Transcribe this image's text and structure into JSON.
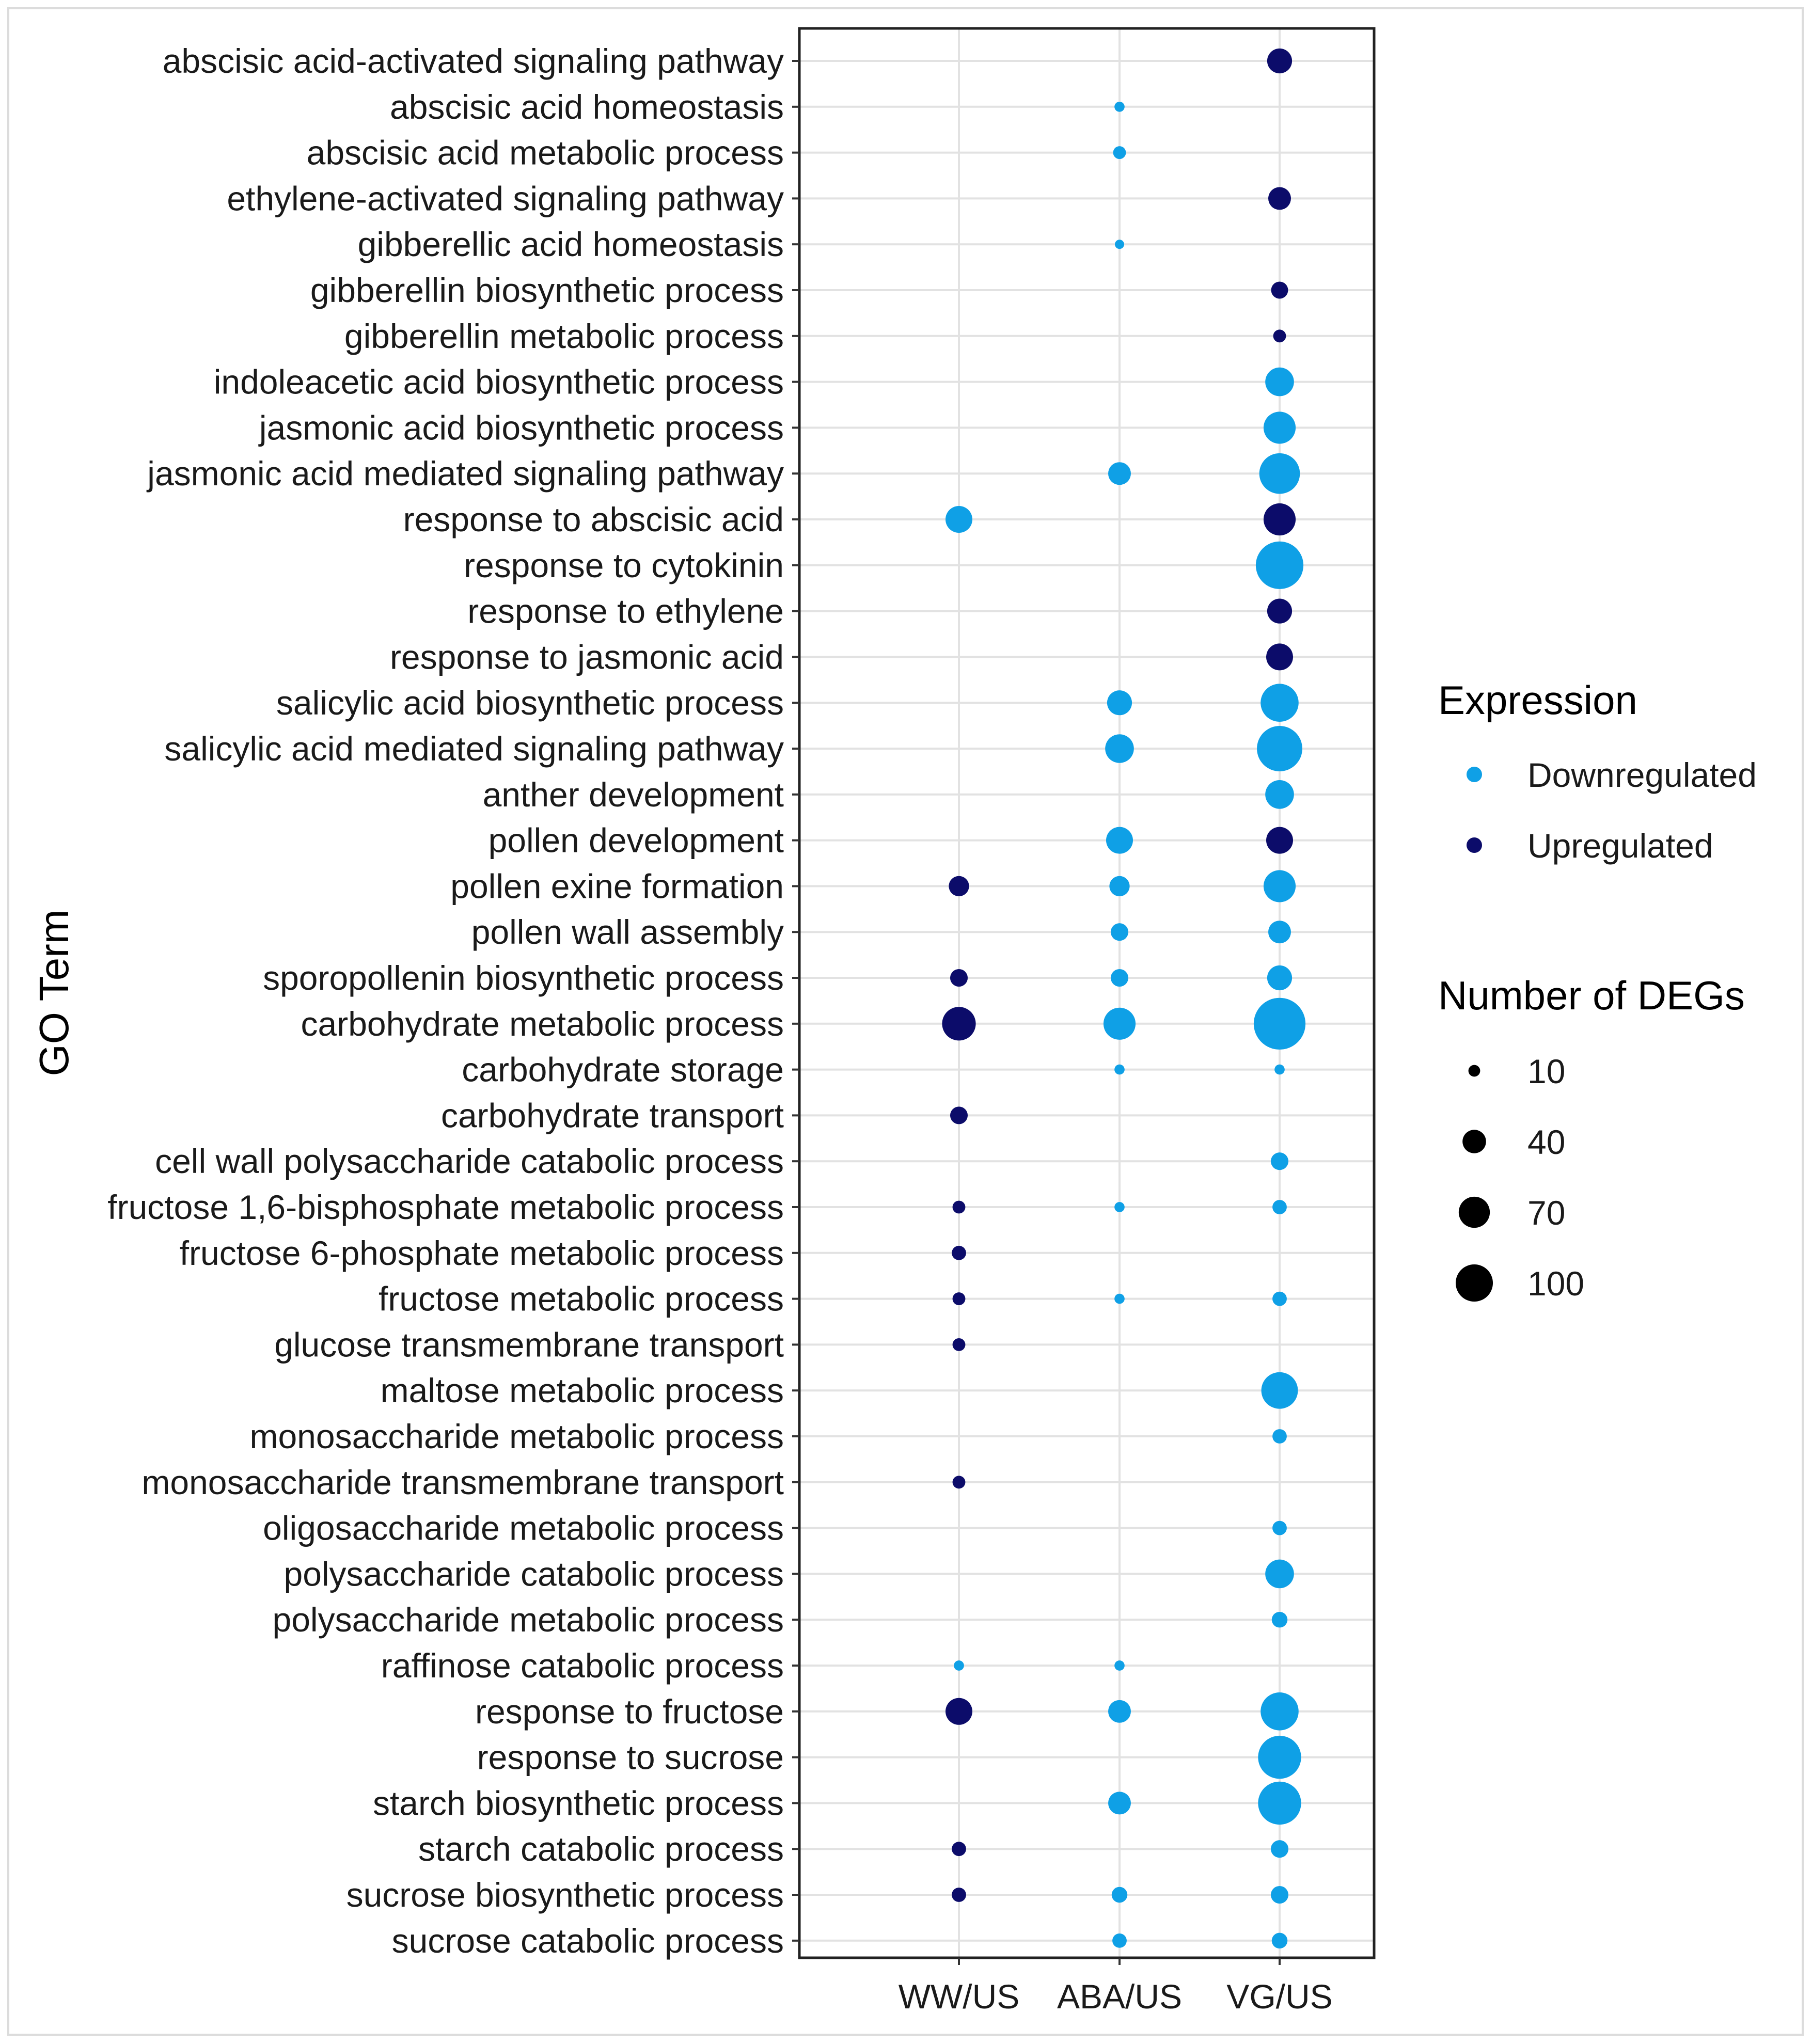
{
  "chart_data": {
    "type": "scatter",
    "title": "",
    "xlabel": "",
    "ylabel": "GO Term",
    "x_categories": [
      "WW/US",
      "ABA/US",
      "VG/US"
    ],
    "y_categories": [
      "abscisic acid-activated signaling pathway",
      "abscisic acid homeostasis",
      "abscisic acid metabolic process",
      "ethylene-activated signaling pathway",
      "gibberellic acid homeostasis",
      "gibberellin biosynthetic process",
      "gibberellin metabolic process",
      "indoleacetic acid biosynthetic process",
      "jasmonic acid biosynthetic process",
      "jasmonic acid mediated signaling pathway",
      "response to abscisic acid",
      "response to cytokinin",
      "response to ethylene",
      "response to jasmonic acid",
      "salicylic acid biosynthetic process",
      "salicylic acid mediated signaling pathway",
      "anther development",
      "pollen development",
      "pollen exine formation",
      "pollen wall assembly",
      "sporopollenin biosynthetic process",
      "carbohydrate metabolic process",
      "carbohydrate storage",
      "carbohydrate transport",
      "cell wall polysaccharide catabolic process",
      "fructose 1,6-bisphosphate metabolic process",
      "fructose 6-phosphate metabolic process",
      "fructose metabolic process",
      "glucose transmembrane transport",
      "maltose metabolic process",
      "monosaccharide metabolic process",
      "monosaccharide transmembrane transport",
      "oligosaccharide metabolic process",
      "polysaccharide catabolic process",
      "polysaccharide metabolic process",
      "raffinose catabolic process",
      "response to fructose",
      "response to sucrose",
      "starch biosynthetic process",
      "starch catabolic process",
      "sucrose biosynthetic process",
      "sucrose catabolic process"
    ],
    "points": [
      {
        "term": "abscisic acid-activated signaling pathway",
        "comparison": "VG/US",
        "degs": 30,
        "expression": "Upregulated"
      },
      {
        "term": "abscisic acid homeostasis",
        "comparison": "ABA/US",
        "degs": 5,
        "expression": "Downregulated"
      },
      {
        "term": "abscisic acid metabolic process",
        "comparison": "ABA/US",
        "degs": 8,
        "expression": "Downregulated"
      },
      {
        "term": "ethylene-activated signaling pathway",
        "comparison": "VG/US",
        "degs": 25,
        "expression": "Upregulated"
      },
      {
        "term": "gibberellic acid homeostasis",
        "comparison": "ABA/US",
        "degs": 4,
        "expression": "Downregulated"
      },
      {
        "term": "gibberellin biosynthetic process",
        "comparison": "VG/US",
        "degs": 14,
        "expression": "Upregulated"
      },
      {
        "term": "gibberellin metabolic process",
        "comparison": "VG/US",
        "degs": 8,
        "expression": "Upregulated"
      },
      {
        "term": "indoleacetic acid biosynthetic process",
        "comparison": "VG/US",
        "degs": 40,
        "expression": "Downregulated"
      },
      {
        "term": "jasmonic acid biosynthetic process",
        "comparison": "VG/US",
        "degs": 50,
        "expression": "Downregulated"
      },
      {
        "term": "jasmonic acid mediated signaling pathway",
        "comparison": "ABA/US",
        "degs": 25,
        "expression": "Downregulated"
      },
      {
        "term": "jasmonic acid mediated signaling pathway",
        "comparison": "VG/US",
        "degs": 80,
        "expression": "Downregulated"
      },
      {
        "term": "response to abscisic acid",
        "comparison": "WW/US",
        "degs": 35,
        "expression": "Downregulated"
      },
      {
        "term": "response to abscisic acid",
        "comparison": "VG/US",
        "degs": 50,
        "expression": "Upregulated"
      },
      {
        "term": "response to cytokinin",
        "comparison": "VG/US",
        "degs": 110,
        "expression": "Downregulated"
      },
      {
        "term": "response to ethylene",
        "comparison": "VG/US",
        "degs": 30,
        "expression": "Upregulated"
      },
      {
        "term": "response to jasmonic acid",
        "comparison": "VG/US",
        "degs": 35,
        "expression": "Upregulated"
      },
      {
        "term": "salicylic acid biosynthetic process",
        "comparison": "ABA/US",
        "degs": 30,
        "expression": "Downregulated"
      },
      {
        "term": "salicylic acid biosynthetic process",
        "comparison": "VG/US",
        "degs": 70,
        "expression": "Downregulated"
      },
      {
        "term": "salicylic acid mediated signaling pathway",
        "comparison": "ABA/US",
        "degs": 40,
        "expression": "Downregulated"
      },
      {
        "term": "salicylic acid mediated signaling pathway",
        "comparison": "VG/US",
        "degs": 100,
        "expression": "Downregulated"
      },
      {
        "term": "anther development",
        "comparison": "VG/US",
        "degs": 40,
        "expression": "Downregulated"
      },
      {
        "term": "pollen development",
        "comparison": "ABA/US",
        "degs": 35,
        "expression": "Downregulated"
      },
      {
        "term": "pollen development",
        "comparison": "VG/US",
        "degs": 35,
        "expression": "Upregulated"
      },
      {
        "term": "pollen exine formation",
        "comparison": "WW/US",
        "degs": 20,
        "expression": "Upregulated"
      },
      {
        "term": "pollen exine formation",
        "comparison": "ABA/US",
        "degs": 20,
        "expression": "Downregulated"
      },
      {
        "term": "pollen exine formation",
        "comparison": "VG/US",
        "degs": 50,
        "expression": "Downregulated"
      },
      {
        "term": "pollen wall assembly",
        "comparison": "ABA/US",
        "degs": 15,
        "expression": "Downregulated"
      },
      {
        "term": "pollen wall assembly",
        "comparison": "VG/US",
        "degs": 25,
        "expression": "Downregulated"
      },
      {
        "term": "sporopollenin biosynthetic process",
        "comparison": "WW/US",
        "degs": 15,
        "expression": "Upregulated"
      },
      {
        "term": "sporopollenin biosynthetic process",
        "comparison": "ABA/US",
        "degs": 15,
        "expression": "Downregulated"
      },
      {
        "term": "sporopollenin biosynthetic process",
        "comparison": "VG/US",
        "degs": 30,
        "expression": "Downregulated"
      },
      {
        "term": "carbohydrate metabolic process",
        "comparison": "WW/US",
        "degs": 55,
        "expression": "Upregulated"
      },
      {
        "term": "carbohydrate metabolic process",
        "comparison": "ABA/US",
        "degs": 50,
        "expression": "Downregulated"
      },
      {
        "term": "carbohydrate metabolic process",
        "comparison": "VG/US",
        "degs": 130,
        "expression": "Downregulated"
      },
      {
        "term": "carbohydrate storage",
        "comparison": "ABA/US",
        "degs": 5,
        "expression": "Downregulated"
      },
      {
        "term": "carbohydrate storage",
        "comparison": "VG/US",
        "degs": 5,
        "expression": "Downregulated"
      },
      {
        "term": "carbohydrate transport",
        "comparison": "WW/US",
        "degs": 15,
        "expression": "Upregulated"
      },
      {
        "term": "cell wall polysaccharide catabolic process",
        "comparison": "VG/US",
        "degs": 15,
        "expression": "Downregulated"
      },
      {
        "term": "fructose 1,6-bisphosphate metabolic process",
        "comparison": "WW/US",
        "degs": 8,
        "expression": "Upregulated"
      },
      {
        "term": "fructose 1,6-bisphosphate metabolic process",
        "comparison": "ABA/US",
        "degs": 5,
        "expression": "Downregulated"
      },
      {
        "term": "fructose 1,6-bisphosphate metabolic process",
        "comparison": "VG/US",
        "degs": 10,
        "expression": "Downregulated"
      },
      {
        "term": "fructose 6-phosphate metabolic process",
        "comparison": "WW/US",
        "degs": 10,
        "expression": "Upregulated"
      },
      {
        "term": "fructose metabolic process",
        "comparison": "WW/US",
        "degs": 8,
        "expression": "Upregulated"
      },
      {
        "term": "fructose metabolic process",
        "comparison": "ABA/US",
        "degs": 5,
        "expression": "Downregulated"
      },
      {
        "term": "fructose metabolic process",
        "comparison": "VG/US",
        "degs": 10,
        "expression": "Downregulated"
      },
      {
        "term": "glucose transmembrane transport",
        "comparison": "WW/US",
        "degs": 8,
        "expression": "Upregulated"
      },
      {
        "term": "maltose metabolic process",
        "comparison": "VG/US",
        "degs": 65,
        "expression": "Downregulated"
      },
      {
        "term": "monosaccharide metabolic process",
        "comparison": "VG/US",
        "degs": 10,
        "expression": "Downregulated"
      },
      {
        "term": "monosaccharide transmembrane transport",
        "comparison": "WW/US",
        "degs": 8,
        "expression": "Upregulated"
      },
      {
        "term": "oligosaccharide metabolic process",
        "comparison": "VG/US",
        "degs": 10,
        "expression": "Downregulated"
      },
      {
        "term": "polysaccharide catabolic process",
        "comparison": "VG/US",
        "degs": 40,
        "expression": "Downregulated"
      },
      {
        "term": "polysaccharide metabolic process",
        "comparison": "VG/US",
        "degs": 12,
        "expression": "Downregulated"
      },
      {
        "term": "raffinose catabolic process",
        "comparison": "WW/US",
        "degs": 5,
        "expression": "Downregulated"
      },
      {
        "term": "raffinose catabolic process",
        "comparison": "ABA/US",
        "degs": 5,
        "expression": "Downregulated"
      },
      {
        "term": "response to fructose",
        "comparison": "WW/US",
        "degs": 35,
        "expression": "Upregulated"
      },
      {
        "term": "response to fructose",
        "comparison": "ABA/US",
        "degs": 25,
        "expression": "Downregulated"
      },
      {
        "term": "response to fructose",
        "comparison": "VG/US",
        "degs": 70,
        "expression": "Downregulated"
      },
      {
        "term": "response to sucrose",
        "comparison": "VG/US",
        "degs": 90,
        "expression": "Downregulated"
      },
      {
        "term": "starch biosynthetic process",
        "comparison": "ABA/US",
        "degs": 25,
        "expression": "Downregulated"
      },
      {
        "term": "starch biosynthetic process",
        "comparison": "VG/US",
        "degs": 90,
        "expression": "Downregulated"
      },
      {
        "term": "starch catabolic process",
        "comparison": "WW/US",
        "degs": 10,
        "expression": "Upregulated"
      },
      {
        "term": "starch catabolic process",
        "comparison": "VG/US",
        "degs": 15,
        "expression": "Downregulated"
      },
      {
        "term": "sucrose biosynthetic process",
        "comparison": "WW/US",
        "degs": 10,
        "expression": "Upregulated"
      },
      {
        "term": "sucrose biosynthetic process",
        "comparison": "ABA/US",
        "degs": 12,
        "expression": "Downregulated"
      },
      {
        "term": "sucrose biosynthetic process",
        "comparison": "VG/US",
        "degs": 15,
        "expression": "Downregulated"
      },
      {
        "term": "sucrose catabolic process",
        "comparison": "ABA/US",
        "degs": 10,
        "expression": "Downregulated"
      },
      {
        "term": "sucrose catabolic process",
        "comparison": "VG/US",
        "degs": 12,
        "expression": "Downregulated"
      }
    ],
    "size_range": [
      0,
      140
    ],
    "legend": {
      "color_title": "Expression",
      "color_entries": [
        {
          "label": "Downregulated",
          "color": "#0fa0e6"
        },
        {
          "label": "Upregulated",
          "color": "#0c0c6a"
        }
      ],
      "size_title": "Number of DEGs",
      "size_entries": [
        {
          "label": "10",
          "value": 10
        },
        {
          "label": "40",
          "value": 40
        },
        {
          "label": "70",
          "value": 70
        },
        {
          "label": "100",
          "value": 100
        }
      ],
      "position": "right"
    },
    "grid": true
  }
}
